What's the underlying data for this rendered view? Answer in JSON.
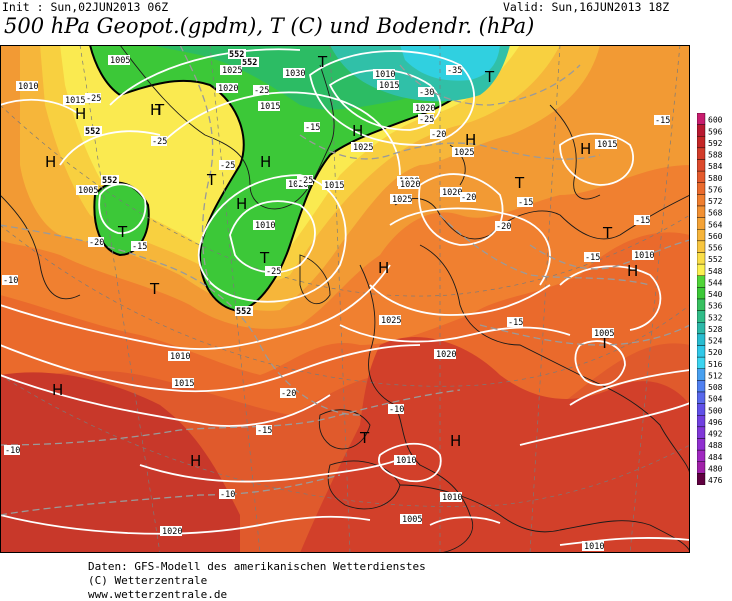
{
  "header": {
    "init": "Init : Sun,02JUN2013 06Z",
    "valid": "Valid: Sun,16JUN2013 18Z",
    "title": "500 hPa Geopot.(gpdm), T (C) und Bodendr. (hPa)"
  },
  "map": {
    "highs": [
      {
        "label": "H"
      },
      {
        "label": "H"
      },
      {
        "label": "H"
      },
      {
        "label": "H"
      },
      {
        "label": "H"
      },
      {
        "label": "H"
      },
      {
        "label": "H"
      },
      {
        "label": "H"
      },
      {
        "label": "H"
      },
      {
        "label": "H"
      },
      {
        "label": "H"
      },
      {
        "label": "H"
      },
      {
        "label": "H"
      }
    ],
    "lows": [
      {
        "label": "T"
      },
      {
        "label": "T"
      },
      {
        "label": "T"
      },
      {
        "label": "T"
      },
      {
        "label": "T"
      },
      {
        "label": "T"
      },
      {
        "label": "T"
      },
      {
        "label": "T"
      },
      {
        "label": "T"
      },
      {
        "label": "T"
      },
      {
        "label": "T"
      }
    ],
    "isobar_labels": [
      "1005",
      "1010",
      "1015",
      "1020",
      "1025",
      "1030",
      "1010",
      "1015",
      "1020",
      "1005",
      "1015",
      "1020",
      "1020",
      "1025",
      "1010",
      "1015",
      "1025",
      "1025",
      "1020",
      "1015",
      "1020",
      "1025",
      "1010",
      "1005",
      "1010",
      "1015",
      "1020",
      "1010",
      "1005",
      "1020",
      "1010",
      "1010"
    ],
    "temp_labels": [
      "-25",
      "-25",
      "-25",
      "-25",
      "-25",
      "-25",
      "-25",
      "-20",
      "-20",
      "-20",
      "-15",
      "-15",
      "-15",
      "-15",
      "-15",
      "-15",
      "-15",
      "-20",
      "-20",
      "-10",
      "-10",
      "-10",
      "-10",
      "-15",
      "-30",
      "-35"
    ],
    "geopot_labels": [
      "552",
      "552",
      "552",
      "552",
      "552"
    ]
  },
  "colorbar": {
    "levels": [
      "600",
      "596",
      "592",
      "588",
      "584",
      "580",
      "576",
      "572",
      "568",
      "564",
      "560",
      "556",
      "552",
      "548",
      "544",
      "540",
      "536",
      "532",
      "528",
      "524",
      "520",
      "516",
      "512",
      "508",
      "504",
      "500",
      "496",
      "492",
      "488",
      "484",
      "480",
      "476"
    ],
    "colors": [
      "#c81c6e",
      "#b81830",
      "#c42626",
      "#d23c2a",
      "#dc4a2c",
      "#e45a2c",
      "#ea6a2c",
      "#f07e2e",
      "#f29032",
      "#f4a236",
      "#f6b43a",
      "#f8c640",
      "#fade48",
      "#fcf050",
      "#50d438",
      "#3cc838",
      "#38c060",
      "#30bc88",
      "#2cb8a8",
      "#28bcd0",
      "#30c8e8",
      "#3cd4f0",
      "#48a0f0",
      "#5080f0",
      "#5868ec",
      "#6050e8",
      "#7040e0",
      "#8038d8",
      "#9030d0",
      "#a028c0",
      "#a020a8",
      "#600040"
    ]
  },
  "footer": {
    "line1": "Daten: GFS-Modell des amerikanischen Wetterdienstes",
    "line2": "(C) Wetterzentrale",
    "line3": "www.wetterzentrale.de"
  }
}
